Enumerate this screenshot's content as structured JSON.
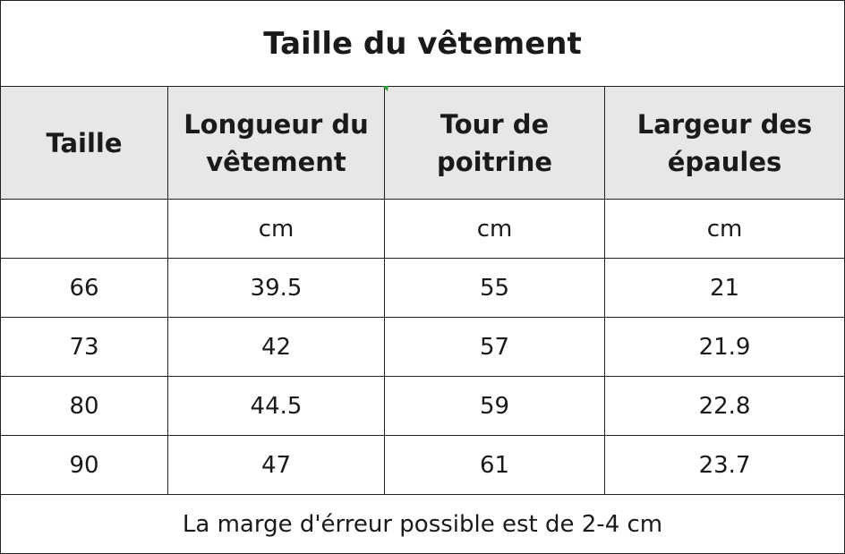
{
  "title": "Taille du vêtement",
  "headers": [
    "Taille",
    "Longueur du vêtement",
    "Tour de poitrine",
    "Largeur des épaules"
  ],
  "units": [
    "",
    "cm",
    "cm",
    "cm"
  ],
  "rows": [
    [
      "66",
      "39.5",
      "55",
      "21"
    ],
    [
      "73",
      "42",
      "57",
      "21.9"
    ],
    [
      "80",
      "44.5",
      "59",
      "22.8"
    ],
    [
      "90",
      "47",
      "61",
      "23.7"
    ]
  ],
  "footer": "La marge d'érreur possible est de 2-4 cm"
}
